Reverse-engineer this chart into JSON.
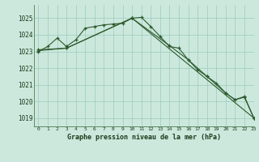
{
  "bg_color": "#cce8dd",
  "grid_color": "#99ccbb",
  "line_color": "#2d5a2d",
  "title": "Graphe pression niveau de la mer (hPa)",
  "xlim": [
    -0.5,
    23
  ],
  "ylim": [
    1018.5,
    1025.8
  ],
  "yticks": [
    1019,
    1020,
    1021,
    1022,
    1023,
    1024,
    1025
  ],
  "xticks": [
    0,
    1,
    2,
    3,
    4,
    5,
    6,
    7,
    8,
    9,
    10,
    11,
    12,
    13,
    14,
    15,
    16,
    17,
    18,
    19,
    20,
    21,
    22,
    23
  ],
  "series": [
    {
      "x": [
        0,
        1,
        2,
        3,
        4,
        5,
        6,
        7,
        8,
        9,
        10,
        11,
        12,
        13,
        14,
        15,
        16,
        17,
        18,
        19,
        20,
        21,
        22,
        23
      ],
      "y": [
        1023.0,
        1023.3,
        1023.8,
        1023.3,
        1023.7,
        1024.4,
        1024.5,
        1024.6,
        1024.65,
        1024.7,
        1025.0,
        1025.05,
        1024.5,
        1023.9,
        1023.3,
        1023.2,
        1022.5,
        1021.9,
        1021.5,
        1021.1,
        1020.5,
        1020.1,
        1020.3,
        1019.0
      ]
    },
    {
      "x": [
        0,
        3,
        10,
        14,
        16,
        18,
        20,
        21,
        22,
        23
      ],
      "y": [
        1023.1,
        1023.2,
        1025.0,
        1023.35,
        1022.5,
        1021.5,
        1020.5,
        1020.1,
        1020.25,
        1019.0
      ]
    },
    {
      "x": [
        0,
        3,
        10,
        23
      ],
      "y": [
        1023.05,
        1023.2,
        1025.0,
        1019.0
      ]
    }
  ]
}
